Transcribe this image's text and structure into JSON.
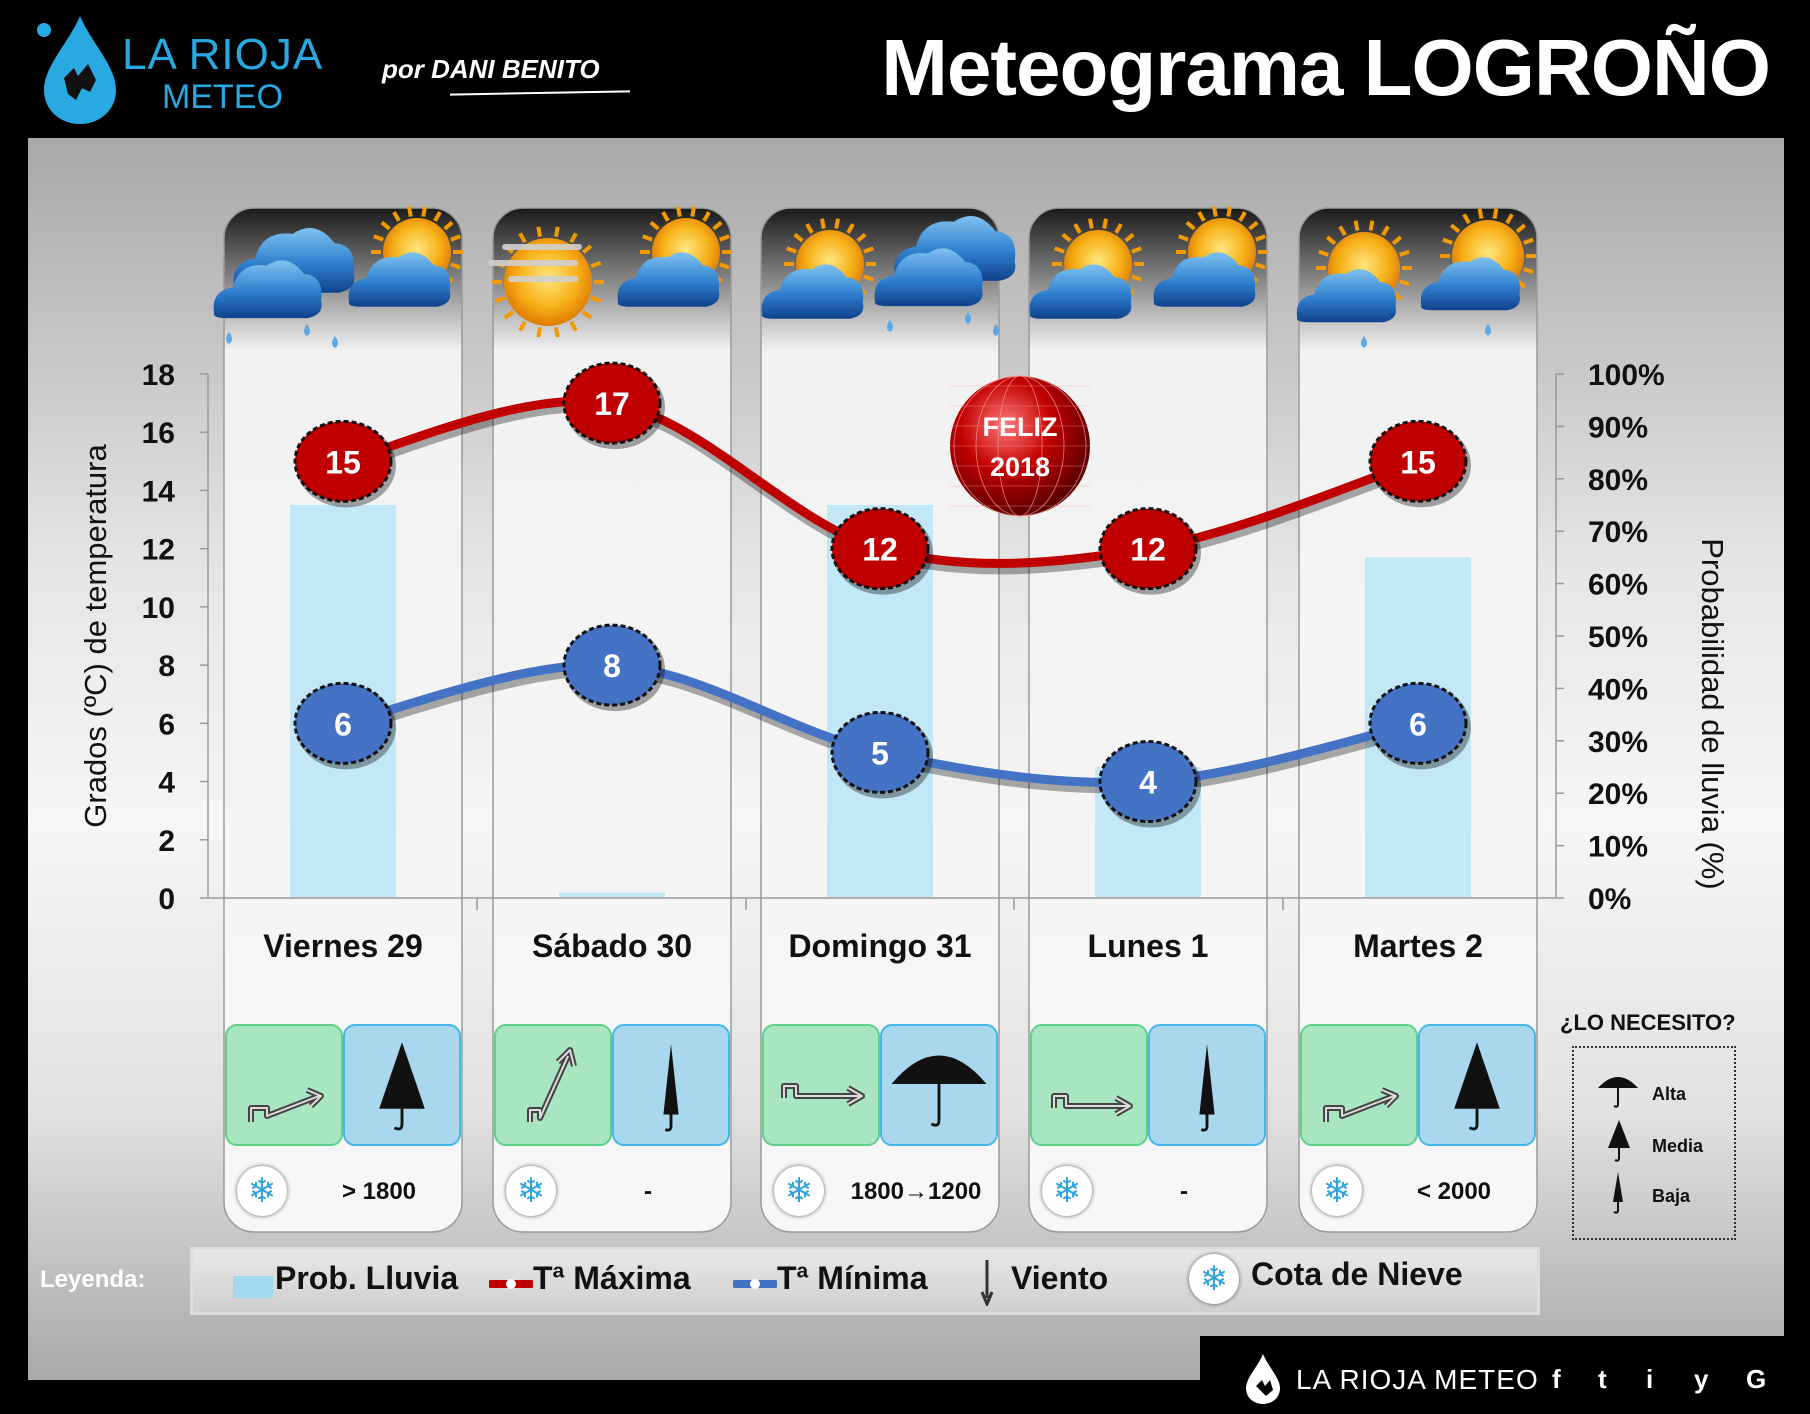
{
  "header": {
    "logo_line1": "LA RIOJA",
    "logo_line2": "METEO",
    "author": "por DANI BENITO",
    "title": "Meteograma LOGROÑO"
  },
  "chart_data": {
    "type": "line",
    "categories": [
      "Viernes 29",
      "Sábado 30",
      "Domingo 31",
      "Lunes 1",
      "Martes 2"
    ],
    "series": [
      {
        "name": "Tª Máxima",
        "values": [
          15,
          17,
          12,
          12,
          15
        ],
        "color": "#c00000"
      },
      {
        "name": "Tª Mínima",
        "values": [
          6,
          8,
          5,
          4,
          6
        ],
        "color": "#4472c4"
      },
      {
        "name": "Prob. Lluvia",
        "type": "bar",
        "axis": "right",
        "values": [
          75,
          1,
          75,
          25,
          65
        ],
        "color": "#bfe6f6"
      }
    ],
    "ylabel": "Grados (ºC) de temperatura",
    "ylabel_right": "Probabilidad de lluvia (%)",
    "ylim": [
      0,
      18
    ],
    "ylim_right": [
      0,
      100
    ],
    "yticks": [
      "0",
      "2",
      "4",
      "6",
      "8",
      "10",
      "12",
      "14",
      "16",
      "18"
    ],
    "yticks_right": [
      "0%",
      "10%",
      "20%",
      "30%",
      "40%",
      "50%",
      "60%",
      "70%",
      "80%",
      "90%",
      "100%"
    ],
    "grid": false,
    "annotation": {
      "line1": "FELIZ",
      "line2": "2018"
    }
  },
  "days": [
    {
      "label": "Viernes 29",
      "cota": "> 1800",
      "umbrella": "media",
      "weather": [
        "cloud-rain-icon",
        "sun-cloud-icon"
      ]
    },
    {
      "label": "Sábado 30",
      "cota": "-",
      "umbrella": "baja",
      "weather": [
        "sun-fog-icon",
        "sun-cloud-icon"
      ]
    },
    {
      "label": "Domingo 31",
      "cota": "1800→1200",
      "umbrella": "alta",
      "weather": [
        "sun-cloud-icon",
        "cloud-rain-icon"
      ]
    },
    {
      "label": "Lunes 1",
      "cota": "-",
      "umbrella": "baja",
      "weather": [
        "sun-cloud-icon",
        "sun-cloud-icon"
      ]
    },
    {
      "label": "Martes 2",
      "cota": "< 2000",
      "umbrella": "media",
      "weather": [
        "sun-cloud-rain-icon",
        "sun-cloud-rain-icon"
      ]
    }
  ],
  "need": {
    "title": "¿LO NECESITO?",
    "alta": "Alta",
    "media": "Media",
    "baja": "Baja"
  },
  "legend": {
    "title": "Leyenda:",
    "rain": "Prob. Lluvia",
    "tmax": "Tª Máxima",
    "tmin": "Tª Mínima",
    "wind": "Viento",
    "snow": "Cota de Nieve"
  },
  "footer": {
    "brand": "LA RIOJA METEO",
    "social": [
      "f",
      "t",
      "i",
      "y",
      "G"
    ]
  }
}
